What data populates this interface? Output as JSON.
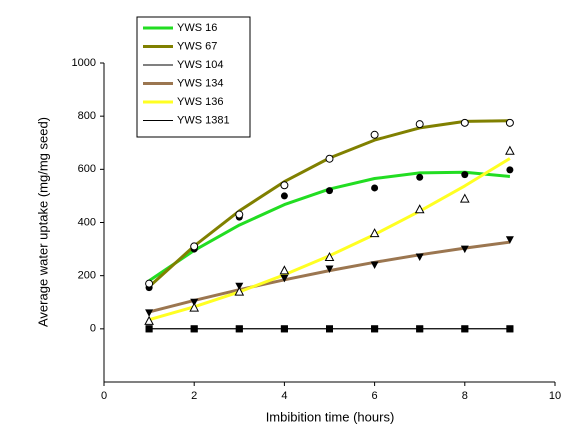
{
  "chart_data": {
    "type": "line",
    "x_label": "Imbibition time (hours)",
    "y_label": "Average water uptake (mg/mg seed)",
    "x": [
      1,
      2,
      3,
      4,
      5,
      6,
      7,
      8,
      9
    ],
    "series": [
      {
        "name": "YWS 16",
        "color": "#22dd22",
        "line_width": 3,
        "marker": "filled-circle",
        "values": [
          155,
          300,
          420,
          500,
          520,
          530,
          570,
          580,
          598
        ]
      },
      {
        "name": "YWS 67",
        "color": "#808000",
        "line_width": 3,
        "marker": "open-circle",
        "values": [
          170,
          310,
          430,
          540,
          640,
          730,
          770,
          775,
          775
        ]
      },
      {
        "name": "YWS 104",
        "color": "#000000",
        "line_width": 1,
        "marker": "square",
        "values": [
          0,
          0,
          0,
          0,
          0,
          0,
          0,
          0,
          0
        ]
      },
      {
        "name": "YWS 134",
        "color": "#9b7650",
        "line_width": 3,
        "marker": "triangle-down",
        "values": [
          60,
          100,
          160,
          190,
          225,
          240,
          270,
          300,
          335
        ]
      },
      {
        "name": "YWS 136",
        "color": "#ffff22",
        "line_width": 3,
        "marker": "open-triangle",
        "values": [
          30,
          80,
          140,
          220,
          270,
          360,
          450,
          490,
          670
        ]
      },
      {
        "name": "YWS 1381",
        "color": "#000000",
        "line_width": 1,
        "marker": "square",
        "values": [
          0,
          0,
          0,
          0,
          0,
          0,
          0,
          0,
          0
        ]
      }
    ],
    "xlim": [
      0,
      10
    ],
    "xticks": [
      0,
      2,
      4,
      6,
      8,
      10
    ],
    "ylim": [
      -200,
      1000
    ],
    "yticks": [
      0,
      200,
      400,
      600,
      800,
      1000
    ],
    "legend": "upper left",
    "fit": "quadratic"
  }
}
